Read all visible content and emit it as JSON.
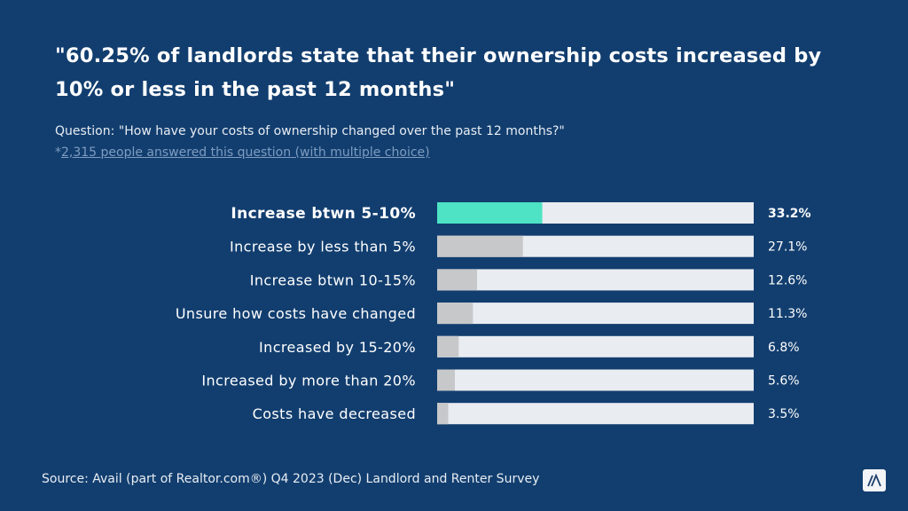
{
  "title": "\"60.25% of landlords state that their ownership costs increased by 10% or less in the past 12 months\"",
  "question": "Question: \"How have your costs of ownership changed over the past 12 months?\"",
  "note_prefix": "*",
  "note_link": "2,315 people answered this question (with multiple choice)",
  "source": "Source: Avail (part of Realtor.com®) Q4 2023 (Dec) Landlord and Renter Survey",
  "logo_icon": "avail-logo-icon",
  "chart_data": {
    "type": "bar",
    "orientation": "horizontal",
    "categories": [
      "Increase btwn 5-10%",
      "Increase by less than 5%",
      "Increase btwn 10-15%",
      "Unsure how costs have changed",
      "Increased by 15-20%",
      "Increased by more than 20%",
      "Costs have decreased"
    ],
    "values": [
      33.2,
      27.1,
      12.6,
      11.3,
      6.8,
      5.6,
      3.5
    ],
    "value_labels": [
      "33.2%",
      "27.1%",
      "12.6%",
      "11.3%",
      "6.8%",
      "5.6%",
      "3.5%"
    ],
    "xlim": [
      0,
      100
    ],
    "highlight_index": 0,
    "colors": {
      "highlight": "#4de3c4",
      "bar": "#c7c8ca",
      "track": "#e9ecf1",
      "background": "#123e6f"
    }
  }
}
